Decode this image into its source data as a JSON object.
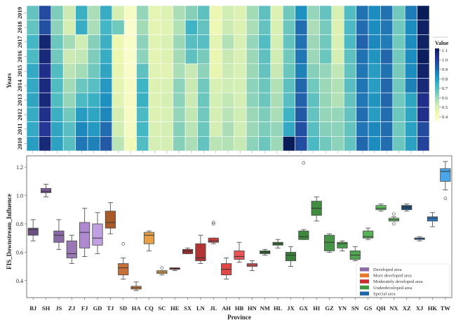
{
  "chart_data": [
    {
      "type": "heatmap",
      "title": "",
      "xlabel": "",
      "ylabel": "Years",
      "colorbar": {
        "label": "Value",
        "ticks": [
          0.4,
          0.5,
          0.6,
          0.7,
          0.8,
          0.9,
          1.0,
          1.1
        ],
        "range": [
          0.35,
          1.12
        ],
        "colormap": "YlGnBu"
      },
      "x": [
        "BJ",
        "SH",
        "JS",
        "ZJ",
        "FJ",
        "GD",
        "TJ",
        "SD",
        "HA",
        "CQ",
        "SC",
        "HE",
        "SX",
        "LN",
        "JL",
        "AH",
        "HB",
        "HN",
        "NM",
        "HL",
        "JX",
        "GX",
        "HI",
        "GZ",
        "YN",
        "SN",
        "GS",
        "QH",
        "NX",
        "XZ",
        "XJ",
        "HK",
        "TW"
      ],
      "y": [
        "2019",
        "2018",
        "2017",
        "2016",
        "2015",
        "2014",
        "2013",
        "2012",
        "2011",
        "2010"
      ],
      "values": [
        [
          0.68,
          0.97,
          0.64,
          0.53,
          0.75,
          0.58,
          0.76,
          0.51,
          0.4,
          0.61,
          0.47,
          0.49,
          0.58,
          0.63,
          0.69,
          0.45,
          0.52,
          0.49,
          0.59,
          0.69,
          0.49,
          0.66,
          0.83,
          0.61,
          0.68,
          0.5,
          0.71,
          0.89,
          0.84,
          0.89,
          0.66,
          0.87,
          1.12
        ],
        [
          0.68,
          0.96,
          0.62,
          0.51,
          0.76,
          0.58,
          0.73,
          0.66,
          0.38,
          0.59,
          0.47,
          0.48,
          0.57,
          0.74,
          0.68,
          0.44,
          0.53,
          0.49,
          0.58,
          0.68,
          0.5,
          0.67,
          0.9,
          0.58,
          0.65,
          0.49,
          0.72,
          0.9,
          0.84,
          0.88,
          0.66,
          0.84,
          1.1
        ],
        [
          0.73,
          1.08,
          0.67,
          0.59,
          0.52,
          0.63,
          0.75,
          0.45,
          0.39,
          0.62,
          0.48,
          0.5,
          0.6,
          0.7,
          0.7,
          0.47,
          0.57,
          0.5,
          0.61,
          0.71,
          0.51,
          0.68,
          0.89,
          0.6,
          0.66,
          0.5,
          0.72,
          0.92,
          0.85,
          0.87,
          0.66,
          0.84,
          1.1
        ],
        [
          0.72,
          1.07,
          0.66,
          0.53,
          0.55,
          0.64,
          0.76,
          0.45,
          0.38,
          0.62,
          0.47,
          0.49,
          0.59,
          0.69,
          0.65,
          0.46,
          0.54,
          0.5,
          0.6,
          0.69,
          0.52,
          0.66,
          0.88,
          0.6,
          0.67,
          0.51,
          0.69,
          0.89,
          0.82,
          0.91,
          0.66,
          0.84,
          1.11
        ],
        [
          0.77,
          1.04,
          0.71,
          0.56,
          0.59,
          0.66,
          0.78,
          0.46,
          0.39,
          0.69,
          0.48,
          0.48,
          0.58,
          0.54,
          0.62,
          0.46,
          0.53,
          0.5,
          0.6,
          0.68,
          0.54,
          0.67,
          0.86,
          0.63,
          0.61,
          0.55,
          0.68,
          0.88,
          0.8,
          0.89,
          0.65,
          0.84,
          1.09
        ],
        [
          0.77,
          1.06,
          0.71,
          0.59,
          0.67,
          0.7,
          0.81,
          0.47,
          0.4,
          0.74,
          0.49,
          0.5,
          0.62,
          0.54,
          0.66,
          0.5,
          0.52,
          0.51,
          0.62,
          0.67,
          0.57,
          0.69,
          0.91,
          0.66,
          0.6,
          0.57,
          0.7,
          0.88,
          0.8,
          0.91,
          0.66,
          0.86,
          1.07
        ],
        [
          0.78,
          1.07,
          0.71,
          0.61,
          0.72,
          0.75,
          0.83,
          0.48,
          0.4,
          0.75,
          0.49,
          0.51,
          0.62,
          0.53,
          0.67,
          0.51,
          0.55,
          0.51,
          0.62,
          0.67,
          0.58,
          0.7,
          0.92,
          0.69,
          0.61,
          0.57,
          0.68,
          0.88,
          0.82,
          0.91,
          0.66,
          0.78,
          1.04
        ],
        [
          0.76,
          1.04,
          0.75,
          0.66,
          0.8,
          0.78,
          0.85,
          0.51,
          0.4,
          0.72,
          0.49,
          0.5,
          0.61,
          0.55,
          0.66,
          0.51,
          0.56,
          0.52,
          0.6,
          0.64,
          0.58,
          0.74,
          0.94,
          0.68,
          0.61,
          0.61,
          0.68,
          0.9,
          0.8,
          0.9,
          0.67,
          0.78,
          1.04
        ],
        [
          0.77,
          1.02,
          0.78,
          0.7,
          0.85,
          0.81,
          0.9,
          0.52,
          0.41,
          0.73,
          0.5,
          0.51,
          0.63,
          0.56,
          0.67,
          0.51,
          0.58,
          0.52,
          0.6,
          0.64,
          0.61,
          0.77,
          0.96,
          0.7,
          0.63,
          0.62,
          0.68,
          0.88,
          0.85,
          0.9,
          0.66,
          0.79,
          0.97
        ],
        [
          0.8,
          1.07,
          0.79,
          0.7,
          0.88,
          0.86,
          0.94,
          0.56,
          0.43,
          0.71,
          0.51,
          0.51,
          0.63,
          0.58,
          0.68,
          0.56,
          0.57,
          0.54,
          0.62,
          0.67,
          0.6,
          1.23,
          0.97,
          0.72,
          0.66,
          0.62,
          0.68,
          0.91,
          0.84,
          0.9,
          0.67,
          0.79,
          0.99
        ]
      ]
    },
    {
      "type": "box",
      "title": "",
      "xlabel": "Province",
      "ylabel": "FIS_Downstream_Influence",
      "ylim": [
        0.28,
        1.28
      ],
      "yticks": [
        0.4,
        0.6,
        0.8,
        1.0,
        1.2
      ],
      "grid": false,
      "legend_position": "bottom-right",
      "legend": [
        {
          "label": "Developed area",
          "color": "#8e6aa8"
        },
        {
          "label": "More developed area",
          "color": "#e8782a"
        },
        {
          "label": "Moderately developed area",
          "color": "#cc2e2e"
        },
        {
          "label": "Underdeveloped area",
          "color": "#3c9a3c"
        },
        {
          "label": "Special area",
          "color": "#2166a8"
        }
      ],
      "categories": [
        "BJ",
        "SH",
        "JS",
        "ZJ",
        "FJ",
        "GD",
        "TJ",
        "SD",
        "HA",
        "CQ",
        "SC",
        "HE",
        "SX",
        "LN",
        "JL",
        "AH",
        "HB",
        "HN",
        "NM",
        "HL",
        "JX",
        "GX",
        "HI",
        "GZ",
        "YN",
        "SN",
        "GS",
        "QH",
        "NX",
        "XZ",
        "XJ",
        "HK",
        "TW"
      ],
      "boxes": [
        {
          "name": "BJ",
          "group": 0,
          "color": "#6a4f82",
          "whislo": 0.68,
          "q1": 0.72,
          "med": 0.76,
          "q3": 0.77,
          "whishi": 0.83,
          "fliers": []
        },
        {
          "name": "SH",
          "group": 0,
          "color": "#7a5a96",
          "whislo": 0.99,
          "q1": 1.02,
          "med": 1.03,
          "q3": 1.05,
          "whishi": 1.08,
          "fliers": []
        },
        {
          "name": "JS",
          "group": 0,
          "color": "#8a6aa6",
          "whislo": 0.62,
          "q1": 0.67,
          "med": 0.72,
          "q3": 0.75,
          "whishi": 0.83,
          "fliers": []
        },
        {
          "name": "ZJ",
          "group": 0,
          "color": "#9a78b6",
          "whislo": 0.52,
          "q1": 0.56,
          "med": 0.59,
          "q3": 0.68,
          "whishi": 0.72,
          "fliers": []
        },
        {
          "name": "FJ",
          "group": 0,
          "color": "#b08ad0",
          "whislo": 0.57,
          "q1": 0.63,
          "med": 0.74,
          "q3": 0.81,
          "whishi": 0.91,
          "fliers": []
        },
        {
          "name": "GD",
          "group": 0,
          "color": "#c0a0e0",
          "whislo": 0.59,
          "q1": 0.65,
          "med": 0.7,
          "q3": 0.8,
          "whishi": 0.88,
          "fliers": []
        },
        {
          "name": "TJ",
          "group": 1,
          "color": "#a85a28",
          "whislo": 0.73,
          "q1": 0.77,
          "med": 0.81,
          "q3": 0.89,
          "whishi": 0.95,
          "fliers": []
        },
        {
          "name": "SD",
          "group": 1,
          "color": "#c8703a",
          "whislo": 0.41,
          "q1": 0.44,
          "med": 0.49,
          "q3": 0.52,
          "whishi": 0.56,
          "fliers": [
            0.66
          ]
        },
        {
          "name": "HA",
          "group": 1,
          "color": "#de8040",
          "whislo": 0.33,
          "q1": 0.34,
          "med": 0.35,
          "q3": 0.36,
          "whishi": 0.39,
          "fliers": []
        },
        {
          "name": "CQ",
          "group": 1,
          "color": "#e8a048",
          "whislo": 0.61,
          "q1": 0.66,
          "med": 0.72,
          "q3": 0.74,
          "whishi": 0.75,
          "fliers": []
        },
        {
          "name": "SC",
          "group": 1,
          "color": "#eeae50",
          "whislo": 0.44,
          "q1": 0.45,
          "med": 0.46,
          "q3": 0.47,
          "whishi": 0.47,
          "fliers": [
            0.49
          ]
        },
        {
          "name": "HE",
          "group": 2,
          "color": "#7a2020",
          "whislo": 0.47,
          "q1": 0.48,
          "med": 0.48,
          "q3": 0.49,
          "whishi": 0.49,
          "fliers": []
        },
        {
          "name": "SX",
          "group": 2,
          "color": "#9a2a2a",
          "whislo": 0.59,
          "q1": 0.59,
          "med": 0.61,
          "q3": 0.62,
          "whishi": 0.63,
          "fliers": []
        },
        {
          "name": "LN",
          "group": 2,
          "color": "#b23434",
          "whislo": 0.52,
          "q1": 0.54,
          "med": 0.56,
          "q3": 0.66,
          "whishi": 0.72,
          "fliers": []
        },
        {
          "name": "JL",
          "group": 2,
          "color": "#cc3c3c",
          "whislo": 0.66,
          "q1": 0.67,
          "med": 0.68,
          "q3": 0.7,
          "whishi": 0.7,
          "fliers": [
            0.8,
            0.81
          ]
        },
        {
          "name": "AH",
          "group": 2,
          "color": "#e04848",
          "whislo": 0.41,
          "q1": 0.44,
          "med": 0.48,
          "q3": 0.52,
          "whishi": 0.56,
          "fliers": []
        },
        {
          "name": "HB",
          "group": 2,
          "color": "#e85454",
          "whislo": 0.53,
          "q1": 0.55,
          "med": 0.57,
          "q3": 0.61,
          "whishi": 0.67,
          "fliers": []
        },
        {
          "name": "HN",
          "group": 2,
          "color": "#ea5a5a",
          "whislo": 0.47,
          "q1": 0.5,
          "med": 0.51,
          "q3": 0.52,
          "whishi": 0.54,
          "fliers": []
        },
        {
          "name": "NM",
          "group": 3,
          "color": "#2e6a2e",
          "whislo": 0.58,
          "q1": 0.59,
          "med": 0.6,
          "q3": 0.61,
          "whishi": 0.62,
          "fliers": []
        },
        {
          "name": "HL",
          "group": 3,
          "color": "#347634",
          "whislo": 0.63,
          "q1": 0.65,
          "med": 0.66,
          "q3": 0.67,
          "whishi": 0.69,
          "fliers": []
        },
        {
          "name": "JX",
          "group": 3,
          "color": "#3a7e3a",
          "whislo": 0.5,
          "q1": 0.54,
          "med": 0.58,
          "q3": 0.6,
          "whishi": 0.64,
          "fliers": []
        },
        {
          "name": "GX",
          "group": 3,
          "color": "#3e883e",
          "whislo": 0.69,
          "q1": 0.69,
          "med": 0.71,
          "q3": 0.75,
          "whishi": 0.76,
          "fliers": [
            1.23
          ]
        },
        {
          "name": "HI",
          "group": 3,
          "color": "#428c42",
          "whislo": 0.82,
          "q1": 0.86,
          "med": 0.91,
          "q3": 0.96,
          "whishi": 0.99,
          "fliers": []
        },
        {
          "name": "GZ",
          "group": 3,
          "color": "#469446",
          "whislo": 0.6,
          "q1": 0.61,
          "med": 0.67,
          "q3": 0.72,
          "whishi": 0.73,
          "fliers": []
        },
        {
          "name": "YN",
          "group": 3,
          "color": "#4a9c4a",
          "whislo": 0.61,
          "q1": 0.63,
          "med": 0.66,
          "q3": 0.67,
          "whishi": 0.68,
          "fliers": []
        },
        {
          "name": "SN",
          "group": 3,
          "color": "#50a650",
          "whislo": 0.54,
          "q1": 0.55,
          "med": 0.58,
          "q3": 0.61,
          "whishi": 0.64,
          "fliers": []
        },
        {
          "name": "GS",
          "group": 3,
          "color": "#58b258",
          "whislo": 0.69,
          "q1": 0.7,
          "med": 0.71,
          "q3": 0.75,
          "whishi": 0.77,
          "fliers": []
        },
        {
          "name": "QH",
          "group": 3,
          "color": "#60be60",
          "whislo": 0.89,
          "q1": 0.9,
          "med": 0.91,
          "q3": 0.93,
          "whishi": 0.94,
          "fliers": []
        },
        {
          "name": "NX",
          "group": 3,
          "color": "#66c866",
          "whislo": 0.82,
          "q1": 0.82,
          "med": 0.83,
          "q3": 0.84,
          "whishi": 0.85,
          "fliers": [
            0.8,
            0.87
          ]
        },
        {
          "name": "XZ",
          "group": 4,
          "color": "#1a4a78",
          "whislo": 0.89,
          "q1": 0.9,
          "med": 0.92,
          "q3": 0.93,
          "whishi": 0.94,
          "fliers": []
        },
        {
          "name": "XJ",
          "group": 4,
          "color": "#1f5a92",
          "whislo": 0.68,
          "q1": 0.69,
          "med": 0.7,
          "q3": 0.7,
          "whishi": 0.71,
          "fliers": []
        },
        {
          "name": "HK",
          "group": 4,
          "color": "#2a78c0",
          "whislo": 0.78,
          "q1": 0.82,
          "med": 0.84,
          "q3": 0.85,
          "whishi": 0.88,
          "fliers": []
        },
        {
          "name": "TW",
          "group": 4,
          "color": "#4aa6e8",
          "whislo": 1.04,
          "q1": 1.1,
          "med": 1.17,
          "q3": 1.19,
          "whishi": 1.24,
          "fliers": [
            0.98
          ]
        }
      ]
    }
  ]
}
